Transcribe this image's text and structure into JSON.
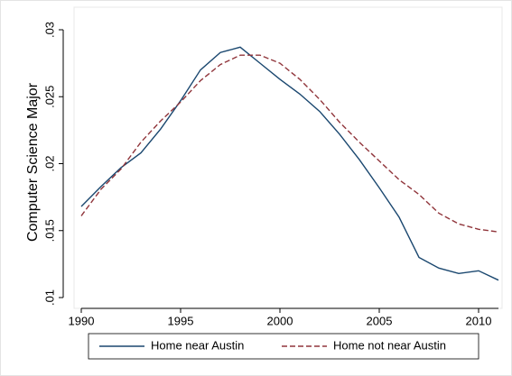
{
  "chart_data": {
    "type": "line",
    "y_label": "Computer Science Major",
    "x": [
      1990,
      1991,
      1992,
      1993,
      1994,
      1995,
      1996,
      1997,
      1998,
      1999,
      2000,
      2001,
      2002,
      2003,
      2004,
      2005,
      2006,
      2007,
      2008,
      2009,
      2010,
      2011
    ],
    "series": [
      {
        "name": "Home near Austin",
        "color": "#1a476f",
        "dash": "solid",
        "values": [
          0.0168,
          0.0183,
          0.0197,
          0.0208,
          0.0226,
          0.0247,
          0.027,
          0.0283,
          0.0287,
          0.0275,
          0.0263,
          0.0252,
          0.0239,
          0.0222,
          0.0203,
          0.0182,
          0.016,
          0.013,
          0.0122,
          0.0118,
          0.012,
          0.0113
        ]
      },
      {
        "name": "Home not near Austin",
        "color": "#90353b",
        "dash": "dashed",
        "values": [
          0.0161,
          0.0181,
          0.0196,
          0.0216,
          0.0232,
          0.0246,
          0.0262,
          0.0274,
          0.0281,
          0.0281,
          0.0275,
          0.0263,
          0.0248,
          0.0231,
          0.0216,
          0.0202,
          0.0188,
          0.0177,
          0.0163,
          0.0155,
          0.0151,
          0.0149
        ]
      }
    ],
    "xlim": [
      1990,
      2011
    ],
    "xticks": [
      1990,
      1995,
      2000,
      2005,
      2010
    ],
    "ylim": [
      0.01,
      0.03
    ],
    "yticks": [
      {
        "value": 0.01,
        "label": ".01"
      },
      {
        "value": 0.015,
        "label": ".015"
      },
      {
        "value": 0.02,
        "label": ".02"
      },
      {
        "value": 0.025,
        "label": ".025"
      },
      {
        "value": 0.03,
        "label": ".03"
      }
    ],
    "legend": "bottom"
  }
}
